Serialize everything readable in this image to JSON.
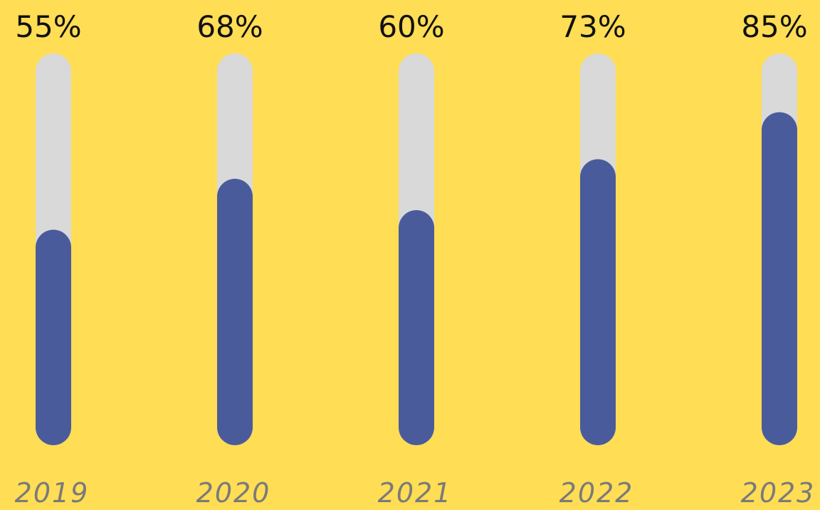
{
  "colors": {
    "background": "#FFDD55",
    "track": "#D9D9D9",
    "fill": "#4A5B9C",
    "value_text": "#111111",
    "year_text": "#7A7A7A"
  },
  "chart_data": {
    "type": "bar",
    "orientation": "vertical-progress",
    "categories": [
      "2019",
      "2020",
      "2021",
      "2022",
      "2023"
    ],
    "values": [
      55,
      68,
      60,
      73,
      85
    ],
    "value_labels": [
      "55%",
      "68%",
      "60%",
      "73%",
      "85%"
    ],
    "ylim": [
      0,
      100
    ],
    "grid": false,
    "legend": "none"
  }
}
